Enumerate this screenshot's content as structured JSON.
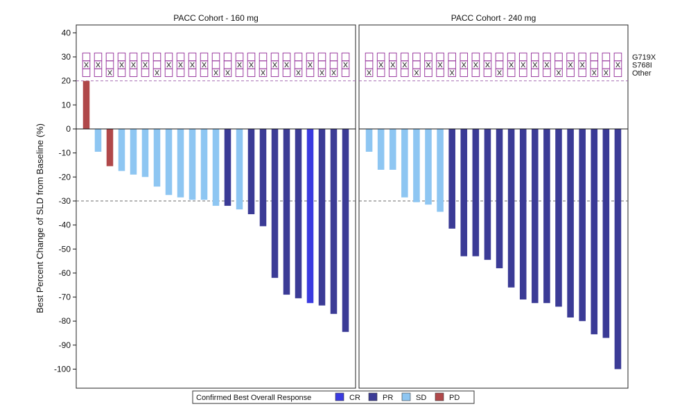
{
  "chart_data": {
    "type": "bar",
    "ylabel": "Best Percent Change of SLD from Baseline (%)",
    "ylim": [
      -105,
      45
    ],
    "yticks": [
      40,
      30,
      20,
      10,
      0,
      -10,
      -20,
      -30,
      -40,
      -50,
      -60,
      -70,
      -80,
      -90,
      -100
    ],
    "reference_lines": [
      20,
      -30
    ],
    "mutation_labels": [
      "G719X",
      "S768I",
      "Other"
    ],
    "legend": {
      "title": "Confirmed Best Overall Response",
      "entries": [
        {
          "key": "CR",
          "label": "CR",
          "color": "#3a3ae0"
        },
        {
          "key": "PR",
          "label": "PR",
          "color": "#3b3b96"
        },
        {
          "key": "SD",
          "label": "SD",
          "color": "#8ec6f2"
        },
        {
          "key": "PD",
          "label": "PD",
          "color": "#b0484a"
        }
      ]
    },
    "panels": [
      {
        "title": "PACC Cohort - 160 mg",
        "values": [
          20,
          -9.5,
          -15.5,
          -17.5,
          -19,
          -20,
          -24,
          -27.5,
          -28.5,
          -29.5,
          -29.5,
          -32,
          -32,
          -33.5,
          -35.5,
          -40.5,
          -62,
          -69,
          -70.5,
          -72.5,
          -73.5,
          -77,
          -84.5
        ],
        "responses": [
          "PD",
          "SD",
          "PD",
          "SD",
          "SD",
          "SD",
          "SD",
          "SD",
          "SD",
          "SD",
          "SD",
          "SD",
          "PR",
          "SD",
          "PR",
          "PR",
          "PR",
          "PR",
          "PR",
          "CR",
          "PR",
          "PR",
          "PR"
        ],
        "mutations": [
          1,
          1,
          2,
          1,
          1,
          1,
          2,
          1,
          1,
          1,
          1,
          2,
          2,
          1,
          1,
          2,
          1,
          1,
          2,
          1,
          2,
          2,
          1
        ]
      },
      {
        "title": "PACC Cohort - 240 mg",
        "values": [
          -9.5,
          -17,
          -17,
          -28.5,
          -30.5,
          -31.5,
          -34.5,
          -41.5,
          -53,
          -53,
          -54.5,
          -58,
          -66,
          -71,
          -72.5,
          -72.5,
          -74,
          -78.5,
          -80,
          -85.5,
          -87,
          -100
        ],
        "responses": [
          "SD",
          "SD",
          "SD",
          "SD",
          "SD",
          "SD",
          "SD",
          "PR",
          "PR",
          "PR",
          "PR",
          "PR",
          "PR",
          "PR",
          "PR",
          "PR",
          "PR",
          "PR",
          "PR",
          "PR",
          "PR",
          "PR"
        ],
        "mutations": [
          2,
          1,
          1,
          1,
          2,
          1,
          1,
          2,
          1,
          1,
          1,
          2,
          1,
          1,
          1,
          1,
          2,
          1,
          1,
          2,
          2,
          1
        ]
      }
    ]
  }
}
